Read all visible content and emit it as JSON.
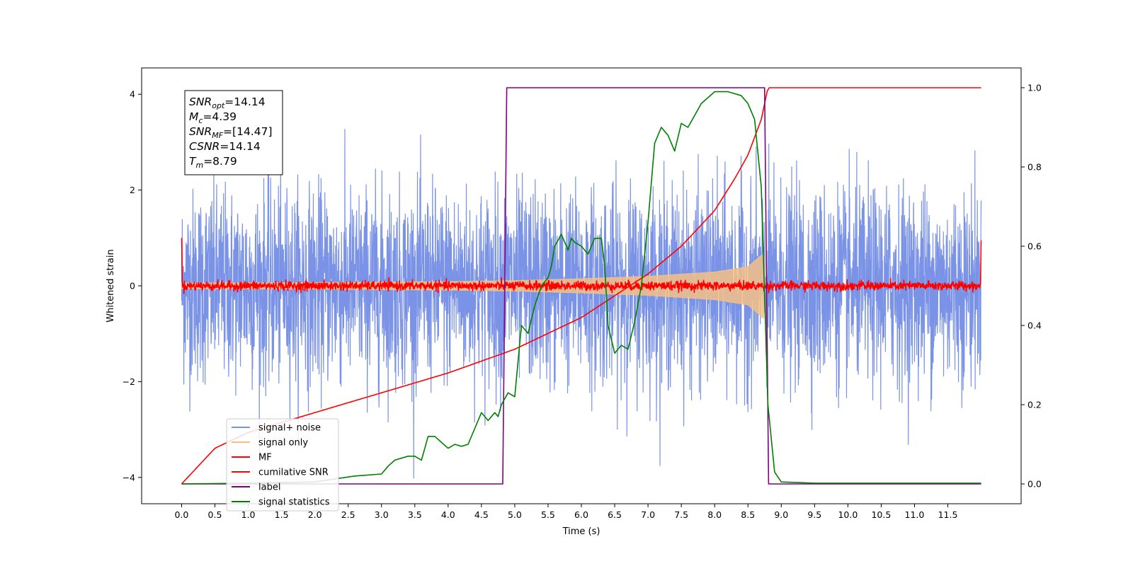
{
  "chart_data": {
    "type": "line",
    "xlabel": "Time (s)",
    "ylabel_left": "Whitened strain",
    "ylabel_right": "",
    "xlim": [
      -0.6,
      12.6
    ],
    "ylim_left": [
      -4.55,
      4.55
    ],
    "ylim_right": [
      -0.05,
      1.05
    ],
    "x_ticks": [
      "0.0",
      "0.5",
      "1.0",
      "1.5",
      "2.0",
      "2.5",
      "3.0",
      "3.5",
      "4.0",
      "4.5",
      "5.0",
      "5.5",
      "6.0",
      "6.5",
      "7.0",
      "7.5",
      "8.0",
      "8.5",
      "9.0",
      "9.5",
      "10.0",
      "10.5",
      "11.0",
      "11.5"
    ],
    "y_ticks_left": [
      "4",
      "2",
      "0",
      "−2",
      "−4"
    ],
    "y_ticks_right": [
      "1.0",
      "0.8",
      "0.6",
      "0.4",
      "0.2",
      "0.0"
    ],
    "grid": false,
    "legend_position": "lower-left",
    "annotation": [
      {
        "base": "SNR",
        "sub": "opt",
        "value": "=14.14"
      },
      {
        "base": "M",
        "sub": "c",
        "value": "=4.39"
      },
      {
        "base": "SNR",
        "sub": "MF",
        "value": "=[14.47]"
      },
      {
        "base": "CSNR",
        "sub": "",
        "value": "=14.14"
      },
      {
        "base": "T",
        "sub": "m",
        "value": "=8.79"
      }
    ],
    "series": [
      {
        "name": "signal+ noise",
        "color": "#7b93e6",
        "axis": "left",
        "x_range": [
          0,
          12
        ],
        "amplitude_std": 1.0,
        "peak_abs": 4.1
      },
      {
        "name": "signal only",
        "color": "#f4c086",
        "axis": "left",
        "x": [
          0.0,
          2.0,
          4.0,
          5.0,
          6.0,
          7.0,
          8.0,
          8.5,
          8.75,
          8.76,
          12.0
        ],
        "envelope": [
          0.06,
          0.07,
          0.09,
          0.11,
          0.15,
          0.2,
          0.29,
          0.4,
          0.7,
          0.0,
          0.0
        ]
      },
      {
        "name": "MF",
        "color": "#ff0000",
        "axis": "left",
        "x_range": [
          0,
          12
        ],
        "amplitude_std": 0.05
      },
      {
        "name": "cumilative SNR",
        "color": "#ff0000",
        "axis": "right",
        "x": [
          0.0,
          0.5,
          1.0,
          2.0,
          3.0,
          4.0,
          5.0,
          6.0,
          7.0,
          7.5,
          8.0,
          8.3,
          8.5,
          8.7,
          8.8,
          12.0
        ],
        "values": [
          0.0,
          0.09,
          0.13,
          0.18,
          0.23,
          0.28,
          0.34,
          0.42,
          0.53,
          0.6,
          0.69,
          0.77,
          0.83,
          0.92,
          1.0,
          1.0
        ]
      },
      {
        "name": "label",
        "color": "#800080",
        "axis": "right",
        "x": [
          0.0,
          4.82,
          4.88,
          8.75,
          8.81,
          12.0
        ],
        "values": [
          0.0,
          0.0,
          1.0,
          1.0,
          0.0,
          0.0
        ]
      },
      {
        "name": "signal statistics",
        "color": "#008000",
        "axis": "right",
        "x": [
          0.0,
          1.0,
          2.0,
          2.4,
          2.6,
          3.0,
          3.1,
          3.2,
          3.4,
          3.5,
          3.6,
          3.7,
          3.8,
          4.0,
          4.1,
          4.2,
          4.3,
          4.5,
          4.6,
          4.7,
          4.75,
          4.8,
          4.9,
          5.0,
          5.1,
          5.2,
          5.3,
          5.4,
          5.5,
          5.55,
          5.6,
          5.7,
          5.8,
          5.85,
          5.9,
          6.0,
          6.1,
          6.2,
          6.3,
          6.35,
          6.4,
          6.5,
          6.6,
          6.7,
          6.8,
          6.9,
          7.0,
          7.1,
          7.2,
          7.3,
          7.4,
          7.5,
          7.6,
          7.8,
          8.0,
          8.2,
          8.4,
          8.5,
          8.6,
          8.7,
          8.8,
          8.9,
          9.0,
          9.5,
          12.0
        ],
        "values": [
          0.0,
          0.002,
          0.005,
          0.015,
          0.02,
          0.025,
          0.045,
          0.06,
          0.07,
          0.07,
          0.06,
          0.12,
          0.12,
          0.09,
          0.1,
          0.095,
          0.1,
          0.18,
          0.16,
          0.18,
          0.17,
          0.2,
          0.23,
          0.22,
          0.4,
          0.38,
          0.45,
          0.5,
          0.52,
          0.55,
          0.6,
          0.63,
          0.59,
          0.62,
          0.61,
          0.6,
          0.58,
          0.62,
          0.62,
          0.55,
          0.4,
          0.33,
          0.35,
          0.34,
          0.41,
          0.5,
          0.66,
          0.86,
          0.9,
          0.88,
          0.84,
          0.91,
          0.9,
          0.96,
          0.99,
          0.99,
          0.98,
          0.96,
          0.92,
          0.75,
          0.2,
          0.03,
          0.005,
          0.002,
          0.002
        ]
      }
    ]
  }
}
